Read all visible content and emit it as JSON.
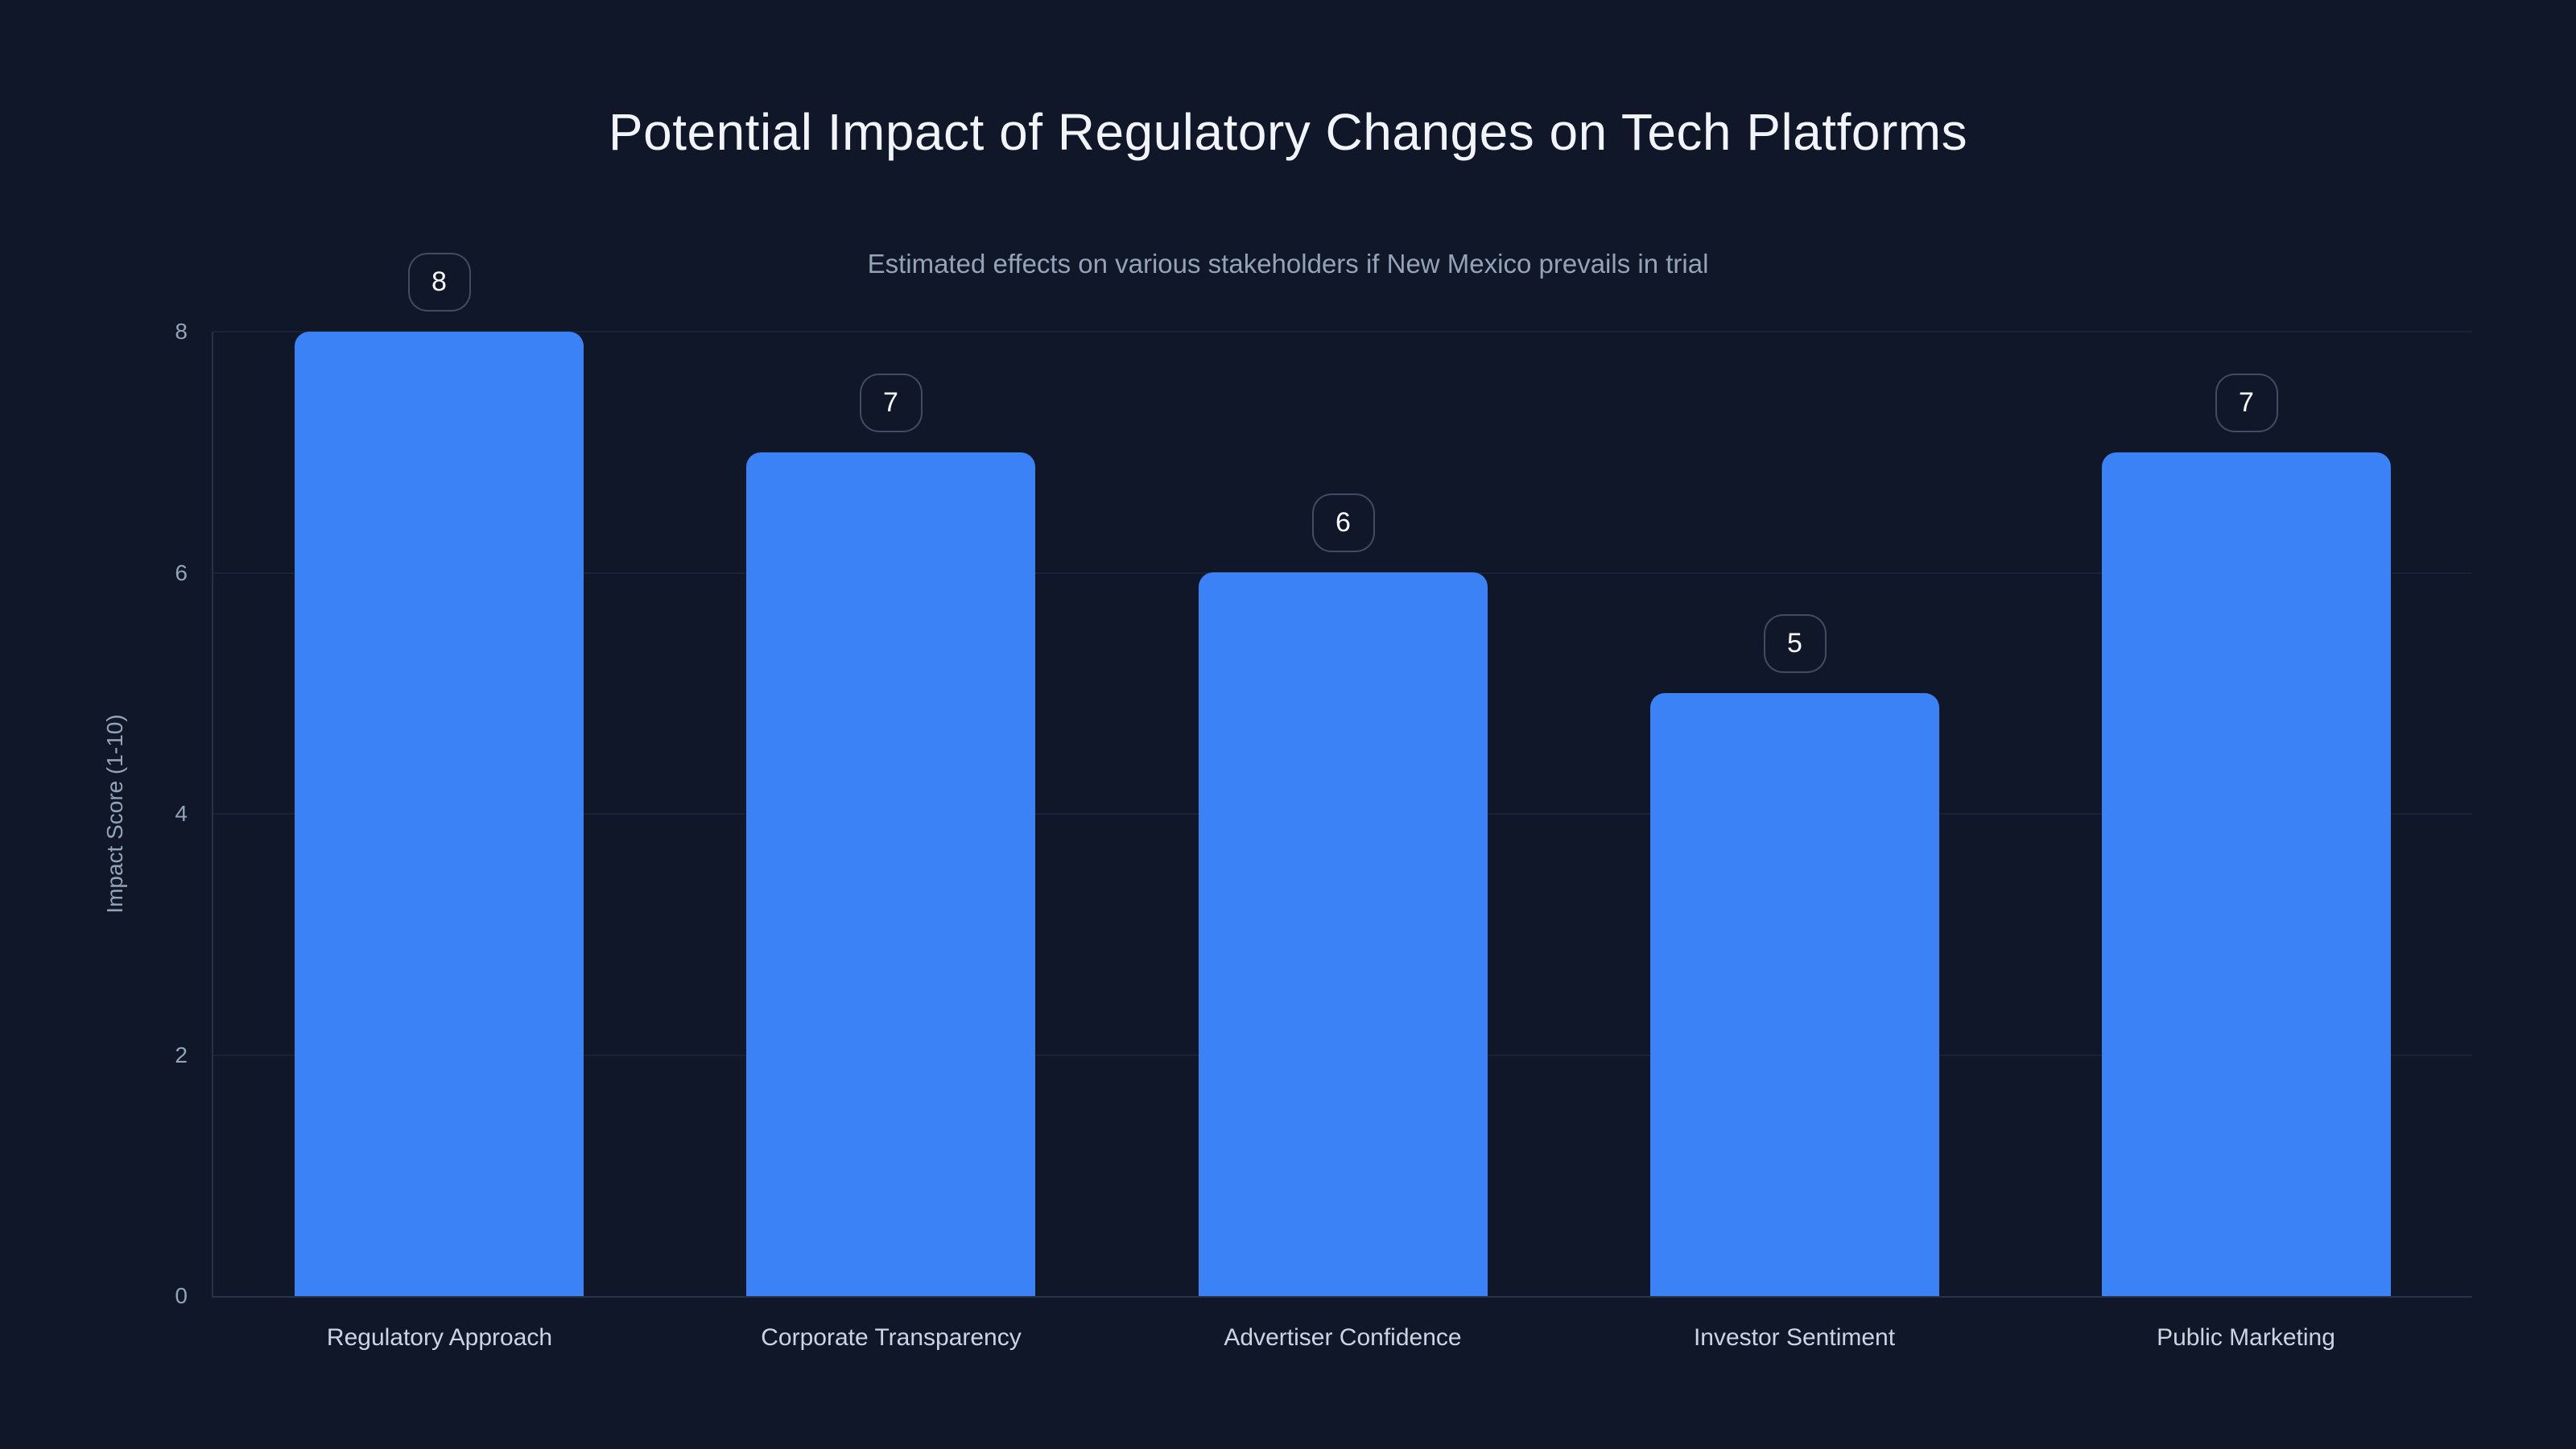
{
  "chart_data": {
    "type": "bar",
    "title": "Potential Impact of Regulatory Changes on Tech Platforms",
    "subtitle": "Estimated effects on various stakeholders if New Mexico prevails in trial",
    "ylabel": "Impact Score (1-10)",
    "xlabel": "",
    "categories": [
      "Regulatory Approach",
      "Corporate Transparency",
      "Advertiser Confidence",
      "Investor Sentiment",
      "Public Marketing"
    ],
    "values": [
      8,
      7,
      6,
      5,
      7
    ],
    "bar_value_labels": [
      "8",
      "7",
      "6",
      "5",
      "7"
    ],
    "yticks": [
      0,
      2,
      4,
      6,
      8
    ],
    "ylim": [
      0,
      8
    ],
    "grid": true,
    "legend": "none",
    "colors": {
      "background": "#0f1729",
      "bar": "#3b82f6",
      "title_text": "#f1f5f9",
      "subtitle_text": "#94a3b8",
      "ytick_text": "#94a3b8",
      "category_text": "#cbd5e1",
      "gridline": "rgba(148,163,184,0.09)",
      "axis_line": "rgba(148,163,184,0.20)",
      "badge_border": "rgba(148,163,184,0.38)",
      "badge_text": "#f8fafc"
    }
  }
}
